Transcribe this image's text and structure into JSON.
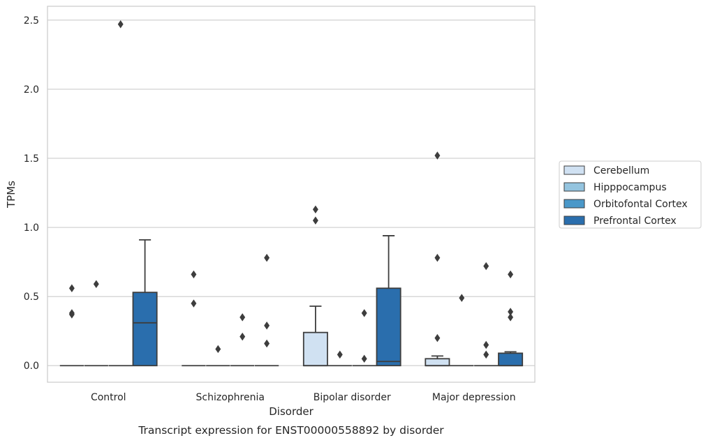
{
  "chart_data": {
    "type": "box",
    "caption": "Transcript expression for ENST00000558892 by disorder",
    "xlabel": "Disorder",
    "ylabel": "TPMs",
    "ylim": [
      -0.12,
      2.6
    ],
    "yticks": [
      0.0,
      0.5,
      1.0,
      1.5,
      2.0,
      2.5
    ],
    "ytick_labels": [
      "0.0",
      "0.5",
      "1.0",
      "1.5",
      "2.0",
      "2.5"
    ],
    "grid": true,
    "legend_position": "right",
    "categories": [
      "Control",
      "Schizophrenia",
      "Bipolar disorder",
      "Major depression"
    ],
    "series": [
      {
        "name": "Cerebellum",
        "color": "#d0e1f2",
        "boxes": [
          {
            "q1": 0,
            "median": 0,
            "q3": 0,
            "whisker_low": 0,
            "whisker_high": 0,
            "outliers": [
              0.56,
              0.38,
              0.37
            ]
          },
          {
            "q1": 0,
            "median": 0,
            "q3": 0,
            "whisker_low": 0,
            "whisker_high": 0,
            "outliers": [
              0.66,
              0.45
            ]
          },
          {
            "q1": 0,
            "median": 0,
            "q3": 0.24,
            "whisker_low": 0,
            "whisker_high": 0.43,
            "outliers": [
              1.13,
              1.05
            ]
          },
          {
            "q1": 0,
            "median": 0,
            "q3": 0.05,
            "whisker_low": 0,
            "whisker_high": 0.07,
            "outliers": [
              1.52,
              0.78,
              0.2
            ]
          }
        ]
      },
      {
        "name": "Hipppocampus",
        "color": "#94c4df",
        "boxes": [
          {
            "q1": 0,
            "median": 0,
            "q3": 0,
            "whisker_low": 0,
            "whisker_high": 0,
            "outliers": [
              0.59
            ]
          },
          {
            "q1": 0,
            "median": 0,
            "q3": 0,
            "whisker_low": 0,
            "whisker_high": 0,
            "outliers": [
              0.12
            ]
          },
          {
            "q1": 0,
            "median": 0,
            "q3": 0,
            "whisker_low": 0,
            "whisker_high": 0,
            "outliers": [
              0.08
            ]
          },
          {
            "q1": 0,
            "median": 0,
            "q3": 0,
            "whisker_low": 0,
            "whisker_high": 0,
            "outliers": [
              0.49
            ]
          }
        ]
      },
      {
        "name": "Orbitofontal Cortex",
        "color": "#4a98c9",
        "boxes": [
          {
            "q1": 0,
            "median": 0,
            "q3": 0,
            "whisker_low": 0,
            "whisker_high": 0,
            "outliers": [
              2.47
            ]
          },
          {
            "q1": 0,
            "median": 0,
            "q3": 0,
            "whisker_low": 0,
            "whisker_high": 0,
            "outliers": [
              0.35,
              0.21
            ]
          },
          {
            "q1": 0,
            "median": 0,
            "q3": 0,
            "whisker_low": 0,
            "whisker_high": 0,
            "outliers": [
              0.38,
              0.05
            ]
          },
          {
            "q1": 0,
            "median": 0,
            "q3": 0,
            "whisker_low": 0,
            "whisker_high": 0,
            "outliers": [
              0.72,
              0.15,
              0.08
            ]
          }
        ]
      },
      {
        "name": "Prefrontal Cortex",
        "color": "#2a6ead",
        "boxes": [
          {
            "q1": 0,
            "median": 0.31,
            "q3": 0.53,
            "whisker_low": 0,
            "whisker_high": 0.91,
            "outliers": []
          },
          {
            "q1": 0,
            "median": 0,
            "q3": 0,
            "whisker_low": 0,
            "whisker_high": 0,
            "outliers": [
              0.78,
              0.29,
              0.16
            ]
          },
          {
            "q1": 0,
            "median": 0.03,
            "q3": 0.56,
            "whisker_low": 0,
            "whisker_high": 0.94,
            "outliers": []
          },
          {
            "q1": 0,
            "median": 0,
            "q3": 0.09,
            "whisker_low": 0,
            "whisker_high": 0.1,
            "outliers": [
              0.66,
              0.39,
              0.35
            ]
          }
        ]
      }
    ]
  }
}
